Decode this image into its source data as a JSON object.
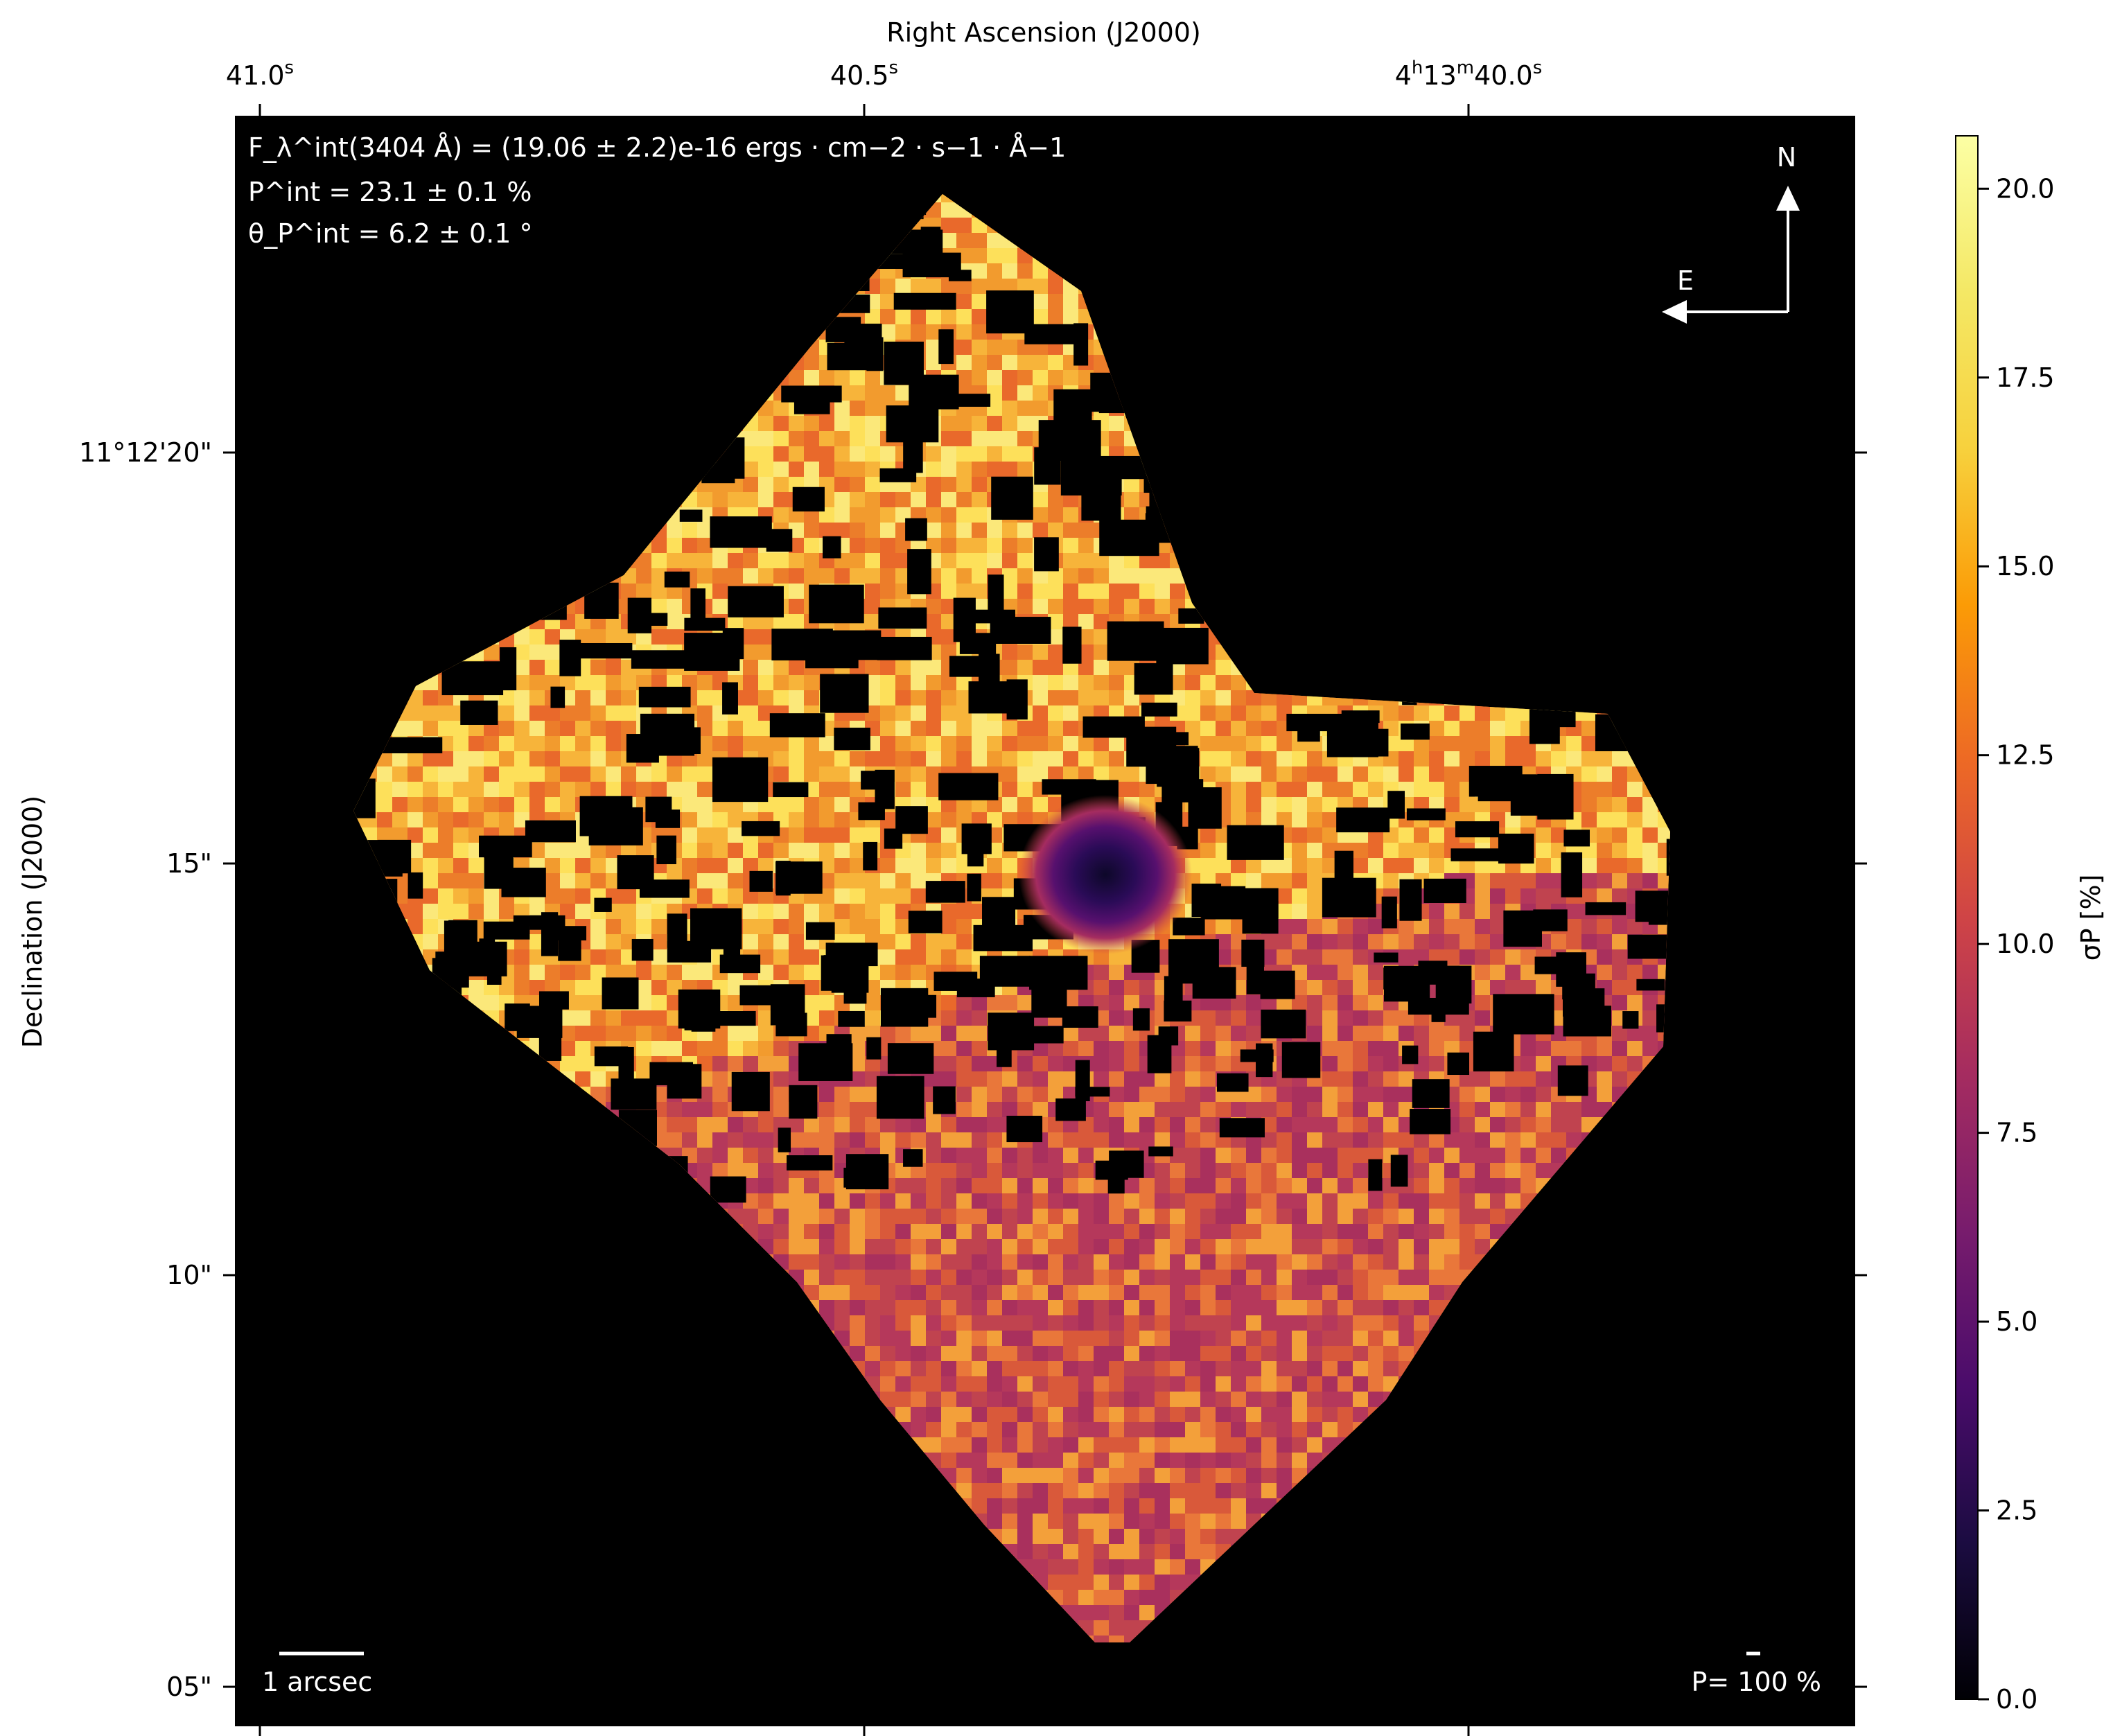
{
  "chart_data": {
    "type": "heatmap",
    "title": "",
    "xlabel": "Right Ascension (J2000)",
    "ylabel": "Declination (J2000)",
    "x_ticks": [
      {
        "label": "41.0",
        "sup": "s"
      },
      {
        "label": "40.5",
        "sup": "s"
      },
      {
        "label": "4h13m40.0",
        "sup": "s"
      }
    ],
    "y_ticks": [
      "11°12'20\"",
      "15\"",
      "10\"",
      "05\""
    ],
    "colorbar": {
      "label": "σP [%]",
      "colormap": "inferno",
      "range": [
        0.0,
        20.7
      ],
      "ticks": [
        "0.0",
        "2.5",
        "5.0",
        "7.5",
        "10.0",
        "12.5",
        "15.0",
        "17.5",
        "20.0"
      ]
    },
    "annotations": {
      "flux_line": "F_λ^int(3404 Å) = (19.06 ± 2.2)e-16 ergs · cm−2 · s−1 · Å−1",
      "pol_line": "P^int = 23.1 ± 0.1 %",
      "angle_line": "θ_P^int = 6.2 ± 0.1 °",
      "north": "N",
      "east": "E",
      "scalebar": "1 arcsec",
      "pol_scale": "P= 100 %"
    },
    "features": {
      "background": "#000000",
      "map_shape": "rotated square (diamond)",
      "nucleus_min_sigma": 1.5,
      "southern_half_sigma_range": [
        8,
        14
      ],
      "northern_half_sigma_range": [
        14,
        20
      ]
    }
  }
}
